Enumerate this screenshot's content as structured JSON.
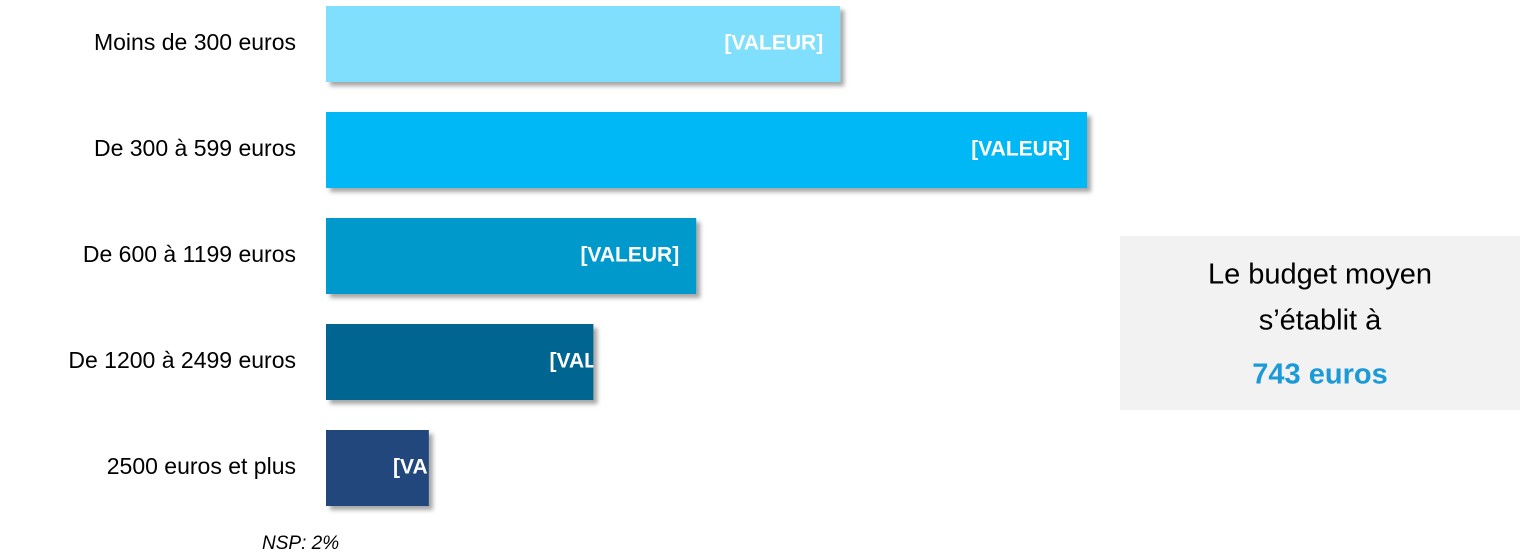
{
  "chart_data": {
    "type": "hbar",
    "categories": [
      "Moins de 300 euros",
      "De 300 à 599 euros",
      "De 600 à 1199 euros",
      "De 1200 à 2499 euros",
      "2500 euros et plus"
    ],
    "values": [
      25,
      37,
      18,
      13,
      5
    ],
    "value_labels": [
      "[VALEUR]",
      "[VALEUR]",
      "[VALEUR]",
      "[VALEUR]",
      "[VALEUR]"
    ],
    "colors": [
      "#80dffd",
      "#00b8f5",
      "#0099cc",
      "#006590",
      "#21477c"
    ],
    "note": "NSP: 2%",
    "callout": {
      "lines": [
        "Le budget moyen",
        "s’établit à"
      ],
      "highlight": "743 euros",
      "highlight_color": "#1a9ad6"
    }
  }
}
